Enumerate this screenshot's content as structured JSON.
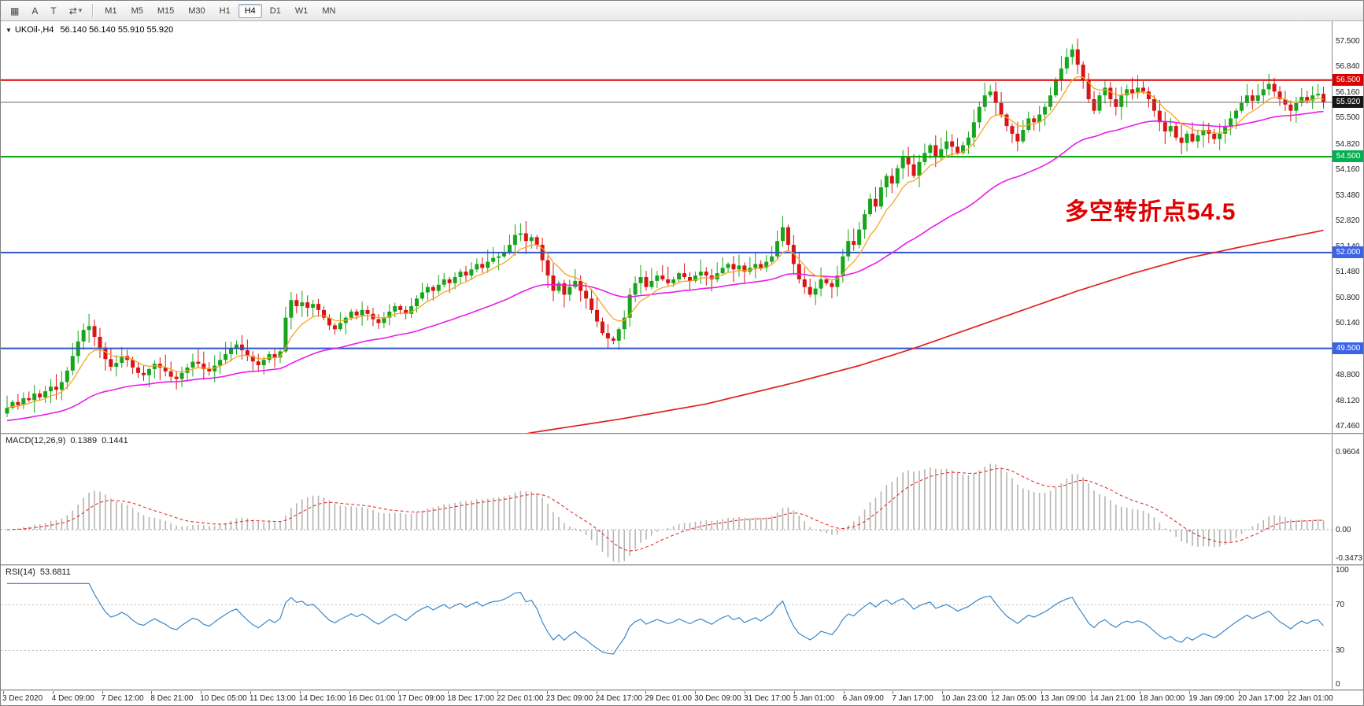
{
  "toolbar": {
    "tools": [
      {
        "name": "chart-grid",
        "glyph": "▦",
        "caret": ""
      },
      {
        "name": "text-annotation",
        "glyph": "A",
        "caret": ""
      },
      {
        "name": "text-label",
        "glyph": "T",
        "caret": ""
      },
      {
        "name": "cycle-symbols",
        "glyph": "⇄",
        "caret": "▾"
      }
    ],
    "timeframes": [
      "M1",
      "M5",
      "M15",
      "M30",
      "H1",
      "H4",
      "D1",
      "W1",
      "MN"
    ],
    "active_timeframe": "H4"
  },
  "chart": {
    "expander": "▼",
    "title": "UKOil-,H4",
    "ohlc_text": "56.140 56.140 55.910 55.920",
    "annotation": {
      "text": "多空转折点54.5",
      "color": "#e00000"
    }
  },
  "macd_panel": {
    "title": "MACD(12,26,9)",
    "macd_value": "0.1389",
    "signal_value": "0.1441"
  },
  "rsi_panel": {
    "title": "RSI(14)",
    "value": "53.6811"
  },
  "chart_data": {
    "type": "candlestick",
    "symbol": "UKOil-",
    "period": "H4",
    "current": {
      "open": 56.14,
      "high": 56.14,
      "low": 55.91,
      "close": 55.92
    },
    "visible_price_range": {
      "max": 57.9,
      "min": 47.3
    },
    "first_open": 47.8,
    "closes": [
      47.95,
      48.1,
      48.02,
      48.2,
      48.15,
      48.32,
      48.22,
      48.38,
      48.5,
      48.42,
      48.62,
      48.92,
      49.3,
      49.68,
      49.98,
      50.08,
      49.8,
      49.52,
      49.22,
      49.02,
      49.12,
      49.3,
      49.2,
      49.0,
      48.86,
      48.8,
      48.96,
      49.1,
      49.0,
      48.9,
      48.76,
      48.7,
      48.86,
      49.0,
      49.15,
      49.1,
      48.96,
      48.9,
      49.05,
      49.2,
      49.35,
      49.5,
      49.6,
      49.45,
      49.3,
      49.16,
      49.06,
      49.2,
      49.35,
      49.26,
      49.42,
      50.3,
      50.76,
      50.6,
      50.7,
      50.56,
      50.66,
      50.5,
      50.3,
      50.1,
      50.0,
      50.16,
      50.3,
      50.46,
      50.36,
      50.5,
      50.4,
      50.26,
      50.16,
      50.3,
      50.46,
      50.6,
      50.5,
      50.4,
      50.6,
      50.8,
      50.96,
      51.1,
      51.0,
      51.16,
      51.3,
      51.2,
      51.36,
      51.5,
      51.4,
      51.56,
      51.7,
      51.6,
      51.76,
      51.86,
      51.9,
      52.0,
      52.2,
      52.46,
      52.5,
      52.3,
      52.4,
      52.2,
      51.8,
      51.4,
      51.0,
      51.2,
      50.9,
      51.1,
      51.26,
      51.0,
      50.8,
      50.5,
      50.2,
      49.9,
      49.76,
      49.7,
      50.0,
      50.3,
      50.9,
      51.2,
      51.36,
      51.1,
      51.26,
      51.4,
      51.3,
      51.2,
      51.3,
      51.46,
      51.36,
      51.26,
      51.4,
      51.5,
      51.4,
      51.3,
      51.46,
      51.6,
      51.7,
      51.56,
      51.66,
      51.5,
      51.6,
      51.7,
      51.6,
      51.76,
      51.9,
      52.3,
      52.66,
      52.2,
      51.7,
      51.3,
      51.1,
      50.9,
      51.06,
      51.3,
      51.2,
      51.1,
      51.4,
      51.9,
      52.3,
      52.2,
      52.6,
      53.0,
      53.4,
      53.2,
      53.7,
      54.0,
      53.8,
      54.2,
      54.5,
      54.3,
      54.0,
      54.36,
      54.6,
      54.8,
      54.5,
      54.7,
      54.9,
      54.76,
      54.6,
      54.8,
      55.0,
      55.4,
      55.8,
      56.1,
      56.2,
      55.9,
      55.6,
      55.3,
      55.1,
      54.9,
      55.2,
      55.5,
      55.4,
      55.6,
      55.8,
      56.1,
      56.5,
      56.8,
      57.1,
      57.3,
      56.9,
      56.5,
      56.0,
      55.7,
      56.1,
      56.3,
      56.0,
      55.8,
      56.1,
      56.26,
      56.16,
      56.3,
      56.2,
      56.0,
      55.7,
      55.4,
      55.16,
      55.3,
      55.0,
      54.86,
      55.1,
      54.9,
      55.06,
      55.2,
      55.1,
      54.96,
      55.1,
      55.3,
      55.5,
      55.7,
      55.9,
      56.1,
      55.96,
      56.1,
      56.26,
      56.4,
      56.2,
      56.0,
      55.86,
      55.7,
      55.9,
      56.06,
      55.96,
      56.1,
      56.14,
      55.92
    ],
    "candle_up_color": "#18a51c",
    "candle_down_color": "#d81414",
    "levels": [
      {
        "label": "56.500",
        "price": 56.5,
        "line_color": "#dd0000",
        "badge_color": "#dd0000",
        "width": 2
      },
      {
        "label": "55.920",
        "price": 55.92,
        "line_color": "#6e6e6e",
        "badge_color": "#161616",
        "width": 1
      },
      {
        "label": "54.500",
        "price": 54.5,
        "line_color": "#00a000",
        "badge_color": "#00b050",
        "width": 2
      },
      {
        "label": "52.000",
        "price": 52.0,
        "line_color": "#2f55cc",
        "badge_color": "#3a63e8",
        "width": 2
      },
      {
        "label": "49.500",
        "price": 49.5,
        "line_color": "#2f55cc",
        "badge_color": "#3a63e8",
        "width": 2
      }
    ],
    "price_axis_labels": [
      "57.500",
      "56.840",
      "56.160",
      "55.500",
      "54.820",
      "54.160",
      "53.480",
      "52.820",
      "52.140",
      "51.480",
      "50.800",
      "50.140",
      "49.460",
      "48.800",
      "48.120",
      "47.460"
    ],
    "time_labels": [
      "3 Dec 2020",
      "4 Dec 09:00",
      "7 Dec 12:00",
      "8 Dec 21:00",
      "10 Dec 05:00",
      "11 Dec 13:00",
      "14 Dec 16:00",
      "16 Dec 01:00",
      "17 Dec 09:00",
      "18 Dec 17:00",
      "22 Dec 01:00",
      "23 Dec 09:00",
      "24 Dec 17:00",
      "29 Dec 01:00",
      "30 Dec 09:00",
      "31 Dec 17:00",
      "5 Jan 01:00",
      "6 Jan 09:00",
      "7 Jan 17:00",
      "10 Jan 23:00",
      "12 Jan 05:00",
      "13 Jan 09:00",
      "14 Jan 21:00",
      "18 Jan 00:00",
      "19 Jan 09:00",
      "20 Jan 17:00",
      "22 Jan 01:00"
    ],
    "moving_averages": {
      "fast": {
        "period": 8,
        "color": "#f5a623"
      },
      "mid": {
        "period": 45,
        "color": "#e81ee8"
      },
      "slow": {
        "color": "#e02020",
        "anchors": [
          [
            0,
            44.6
          ],
          [
            96,
            47.3
          ],
          [
            112,
            47.65
          ],
          [
            128,
            48.05
          ],
          [
            144,
            48.6
          ],
          [
            156,
            49.05
          ],
          [
            166,
            49.5
          ],
          [
            176,
            50.0
          ],
          [
            186,
            50.5
          ],
          [
            196,
            51.0
          ],
          [
            206,
            51.45
          ],
          [
            216,
            51.85
          ],
          [
            226,
            52.15
          ],
          [
            234,
            52.38
          ],
          [
            241,
            52.58
          ]
        ]
      }
    },
    "macd": {
      "fast": 12,
      "slow": 26,
      "signal": 9,
      "current_macd": 0.1389,
      "current_signal": 0.1441,
      "axis_labels": [
        "0.9604",
        "0.00",
        "-0.3473"
      ],
      "histogram_color": "#b4b4b4",
      "signal_color": "#e03030"
    },
    "rsi": {
      "period": 14,
      "current": 53.6811,
      "axis_labels": [
        "100",
        "70",
        "30",
        "0"
      ],
      "grid_levels": [
        70,
        30
      ],
      "color": "#3a87c8"
    }
  }
}
